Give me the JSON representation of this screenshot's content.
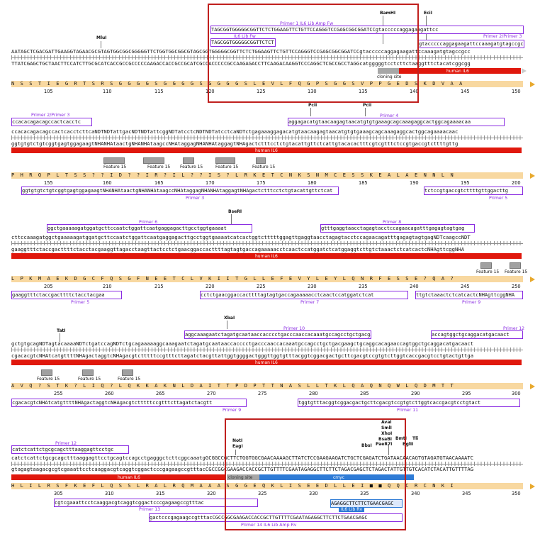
{
  "blocks": [
    {
      "top_seq": "AATAGCTCGACGATTGAAGGTAGAACGCGTAGTGGCGGCGGGGGTTCTGGTGGCGGCGTAGCGGTGGGGGCGGTTCTCTGGAAGTTCTGTTCCAGGGTCCGAGCGGCGGATCCgtacccccaggagaagattccaaagatgtagccgcc",
      "bot_seq": "TTATCGAGCTGCTAACTTCCATCTTGCGCATCACCGCCGCCCCCAAGACCACCGCCGCATCGCCACCCCCGCCAAGAGACCTTCAAGACAAGGTCCCAGGCTCGCCGCCTAGGcatgggggtcctcttctaaggtttctacatcggcgg",
      "aa": "N  S  S  T  I  E  G  R  T  S  R  S  G  G  G  G  S  G  G  G  G  S  G  G  G  G  S  L  E  V  L  F  Q  G  P  S  G  G  S  V  P  P  G  E  D  S  K  D  V  A  A",
      "nums": [
        "105",
        "110",
        "115",
        "120",
        "125",
        "130",
        "135",
        "140",
        "145",
        "150"
      ],
      "primers_above": [
        {
          "label": "Primer 1 IL6 Lib Amp Fw",
          "seq": "TAGCGGTGGGGGCGGTTCTCTGGAAGTTCTGTTCCAGGGTCCGAGCGGCGGATCCgtacccccaggagaagattcc"
        },
        {
          "label": "IL6 Lib Fw",
          "seq": "TAGCGGTGGGGGCGGTTCTCT"
        },
        {
          "label": "Primer 2/Primer 3",
          "seq": "gtacccccaggagaagattccaaagatgtagccgcc"
        }
      ],
      "sites": [
        "MluI",
        "BamHI",
        "EciI"
      ],
      "features": [
        {
          "label": "cloning site"
        },
        {
          "label": "human IL6"
        }
      ]
    },
    {
      "top_seq": "ccacacagacagccactcacctcttcaNDTNDTattgacNDTNDTattcggNDTatcctcNDTNDTatcctcaNDTctgagaaaggagacatgtaacaagagtaacatgtgtgaaagcagcaaagaggcactggcagaaaacaac",
      "bot_seq": "ggtgtgtctgtcggtgagtggagaagtNHANHAtaactgNHANHAtaagccNHAtaggagNHANHAtaggagtNHAgactctttcctctgtacattgttctcattgtacacactttcgtcgtttctccgtgaccgtcttttgttg",
      "aa": "P  H  R  Q  P  L  T  S  S  ?  ?  I  D  ?  ?  I  R  ?  I  L  ?  ?  I  S  ?  L  R  K  E  T  C  N  K  S  N  M  C  E  S  S  K  E  A  L  A  E  N  N  L  N",
      "nums": [
        "155",
        "160",
        "165",
        "170",
        "175",
        "180",
        "185",
        "190",
        "195",
        "200"
      ],
      "primers_above": [
        {
          "label": "Primer 2/Primer 3",
          "seq": "ccacacagacagccactcacctc"
        },
        {
          "label": "Primer 4",
          "seq": "aggagacatgtaacaagagtaacatgtgtgaaagcagcaaagaggcactggcagaaaacaa"
        }
      ],
      "primers_below": [
        {
          "label": "Primer 3",
          "seq": "ggtgtgtctgtcggtgagtggagaagtNHANHAtaactgNHANHAtaagccNHAtaggagNHANHAtaggagtNHAgactctttcctctgtacattgttctcat"
        },
        {
          "label": "Primer 5",
          "seq": "tctccgtgaccgtcttttgttggacttg"
        }
      ],
      "sites": [
        "PciI",
        "PciI"
      ],
      "features": [
        {
          "label": "human IL6"
        },
        {
          "label": "Feature 15"
        },
        {
          "label": "Feature 15"
        },
        {
          "label": "Feature 15"
        },
        {
          "label": "Feature 15"
        },
        {
          "label": "Feature 15"
        }
      ]
    },
    {
      "top_seq": "cttccaaagatggctgaaaaagatggatgcttccaatctggattcaatgaggagacttgcctggtgaaaatcatcactggtctttttggagttgaggtaacctagagtacctccagaacagatttgagagtagtgagNDTcaagccNDT",
      "bot_seq": "gaaggtttctaccgacttttctacctacgaaggttagacctaagttactcctctgaacggaccacttttagtagtgaccagaaaaacctcaactccatggatctcatggaggtcttgtctaaactctcatcactcNHAgttcggNHA",
      "aa": "L  P  K  M  A  E  K  D  G  C  F  Q  S  G  F  N  E  E  T  C  L  V  K  I  I  T  G  L  L  E  F  E  V  Y  L  E  Y  L  Q  N  R  F  E  S  S  E  ?  Q  A  ?",
      "nums": [
        "205",
        "210",
        "215",
        "220",
        "225",
        "230",
        "235",
        "240",
        "245",
        "250"
      ],
      "primers_above": [
        {
          "label": "Primer 6",
          "seq": "ggctgaaaaagatggatgcttccaatctggattcaatgaggagacttgcctggtgaaaat"
        },
        {
          "label": "Primer 8",
          "seq": "gtttgaggtaacctagagtacctccagaacagatttgagagtagtgag"
        }
      ],
      "primers_below": [
        {
          "label": "Primer 5",
          "seq": "gaaggtttctaccgacttttctacctacgaa"
        },
        {
          "label": "Primer 7",
          "seq": "cctctgaacggaccacttttagtagtgaccagaaaaacctcaactccatggatctcat"
        },
        {
          "label": "Primer 9",
          "seq": "ttgtctaaactctcatcactcNHAgttcggNHA"
        }
      ],
      "sites": [
        "BseRI"
      ],
      "features": [
        {
          "label": "human IL6"
        },
        {
          "label": "Feature 15"
        },
        {
          "label": "Feature 15"
        }
      ]
    },
    {
      "top_seq": "gctgtgcagNDTagtacaaaaNDTctgatccagNDTctgcagaaaaaggcaaagaatctagatgcaataaccacccctgacccaaccacaaatgccagcctgctgacgaagctgcaggcacagaaccagtggctgcaggacatgacaact",
      "bot_seq": "cgacacgtcNHAtcatgttttNHAgactaggtcNHAgacgtctttttccgtttcttagatctacgttattggtggggactgggttggtgtttacggtcggacgactgcttcgacgtccgtgtcttggtcaccgacgtcctgtactgttga",
      "aa": "A  V  Q  ?  S  T  K  ?  L  I  Q  ?  L  Q  K  K  A  K  N  L  D  A  I  T  T  P  D  P  T  T  N  A  S  L  L  T  K  L  Q  A  Q  N  Q  W  L  Q  D  M  T  T",
      "nums": [
        "255",
        "260",
        "265",
        "270",
        "275",
        "280",
        "285",
        "290",
        "295",
        "300"
      ],
      "primers_above": [
        {
          "label": "Primer 10",
          "seq": "aggcaaagaatctagatgcaataaccacccctgacccaaccacaaatgccagcctgctgacga"
        },
        {
          "label": "Primer 12",
          "seq": "accagtggctgcaggacatgacaact"
        }
      ],
      "primers_below": [
        {
          "label": "Primer 9",
          "seq": "cgacacgtcNHAtcatgttttNHAgactaggtcNHAgacgtctttttccgtttcttagatctacgtt"
        },
        {
          "label": "Primer 11",
          "seq": "tggtgtttacggtcggacgactgcttcgacgtccgtgtcttggtcaccgacgtcctgtact"
        }
      ],
      "sites": [
        "TatI",
        "XbaI"
      ],
      "features": [
        {
          "label": "human IL6"
        },
        {
          "label": "Feature 15"
        },
        {
          "label": "Feature 15"
        },
        {
          "label": "Feature 15"
        }
      ]
    },
    {
      "top_seq": "catctcattctgcgcagctttaaggagttcctgcagtccagcctgagggctcttcggcaaatgGCGGCCGCTTCTGGTGGCGAACAAAAGCTTATCTCCGAAGAAGATCTGCTCGAGATCTGATAACAACAGTGTAGATGTAACAAAATC",
      "bot_seq": "gtagagtaagacgcgtcgaaattcctcaaggacgtcaggtcggactcccgagaagccgtttacCGCCGGCGAAGACCACCGCTTGTTTTCGAATAGAGGCTTCTTCTAGACGAGCTCTAGACTATTGTTGTCACATCTACATTGTTTTAG",
      "aa": "H  L  I  L  R  S  F  K  E  F  L  Q  S  S  L  R  A  L  R  Q  M  A  A  A  S  G  G  E  Q  K  L  I  S  E  E  D  L  L  E  I  ■  ■  Q  Q  C  R  C  N  K  I",
      "nums": [
        "305",
        "310",
        "315",
        "320",
        "325",
        "330",
        "335",
        "340",
        "345",
        "350"
      ],
      "primers_above": [
        {
          "label": "Primer 12",
          "seq": "catctcattctgcgcagctttaaggagttcctgc"
        }
      ],
      "primers_below": [
        {
          "label": "Primer 13",
          "seq": "cgtcgaaattcctcaaggacgtcaggtcggactcccgagaagccgtttac"
        },
        {
          "label": "IL6 Lib Rv",
          "seq": "AGAGGCTTCTTCTGAACGAGC"
        },
        {
          "label": "Primer 14 IL6 Lib Amp Rv",
          "seq": "gactcccgagaagccgtttacCGCCGGCGAAGACCACCGCTTGTTTTCGAATAGAGGCTTCTTCTGAACGAGC"
        }
      ],
      "sites": [
        "NotI",
        "EagI",
        "AvaI",
        "SmlI",
        "XhoI",
        "BsaBI",
        "PaeR7I",
        "BbsI",
        "BmtI",
        "Tli",
        "BglII"
      ],
      "features": [
        {
          "label": "human IL6"
        },
        {
          "label": "cloning site"
        },
        {
          "label": "cmyc"
        }
      ]
    }
  ],
  "colors": {
    "primer": "#8a2be2",
    "feature_red": "#e0180d",
    "feature_blue": "#2e7bd6",
    "feature_gray": "#a7a7a7",
    "aa_band": "#f8d8a0",
    "highlight": "#c0201e"
  }
}
